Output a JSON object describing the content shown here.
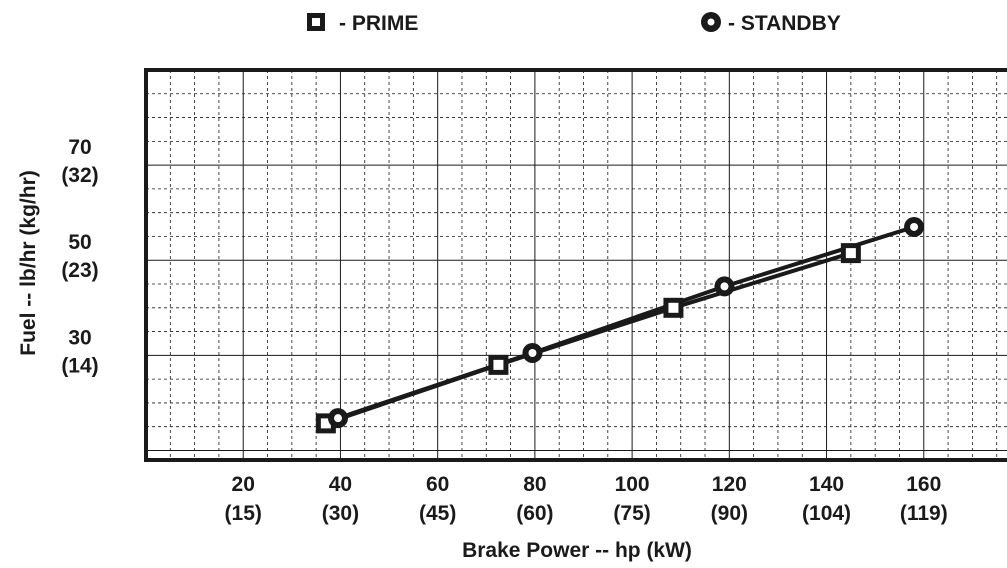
{
  "chart_data": {
    "type": "scatter",
    "title": "",
    "xlabel": "Brake Power -- hp (kW)",
    "ylabel": "Fuel -- lb/hr (kg/hr)",
    "xlim": [
      0,
      180
    ],
    "ylim": [
      8,
      90
    ],
    "grid": true,
    "legend_position": "top",
    "x_ticks": [
      {
        "value": 20,
        "label": "20",
        "sub": "(15)"
      },
      {
        "value": 40,
        "label": "40",
        "sub": "(30)"
      },
      {
        "value": 60,
        "label": "60",
        "sub": "(45)"
      },
      {
        "value": 80,
        "label": "80",
        "sub": "(60)"
      },
      {
        "value": 100,
        "label": "100",
        "sub": "(75)"
      },
      {
        "value": 120,
        "label": "120",
        "sub": "(90)"
      },
      {
        "value": 140,
        "label": "140",
        "sub": "(104)"
      },
      {
        "value": 160,
        "label": "160",
        "sub": "(119)"
      }
    ],
    "y_ticks": [
      {
        "value": 30,
        "label": "30",
        "sub": "(14)"
      },
      {
        "value": 50,
        "label": "50",
        "sub": "(23)"
      },
      {
        "value": 70,
        "label": "70",
        "sub": "(32)"
      }
    ],
    "series": [
      {
        "name": "- PRIME",
        "marker": "square",
        "x": [
          37,
          72.5,
          108.5,
          145
        ],
        "y": [
          15.7,
          28,
          40,
          51.5
        ]
      },
      {
        "name": "- STANDBY",
        "marker": "circle",
        "x": [
          39.5,
          79.5,
          119,
          158
        ],
        "y": [
          16.8,
          30.5,
          44.5,
          57
        ]
      }
    ],
    "colors": {
      "line": "#1a1a1a",
      "grid": "#1a1a1a",
      "background": "#ffffff"
    }
  }
}
